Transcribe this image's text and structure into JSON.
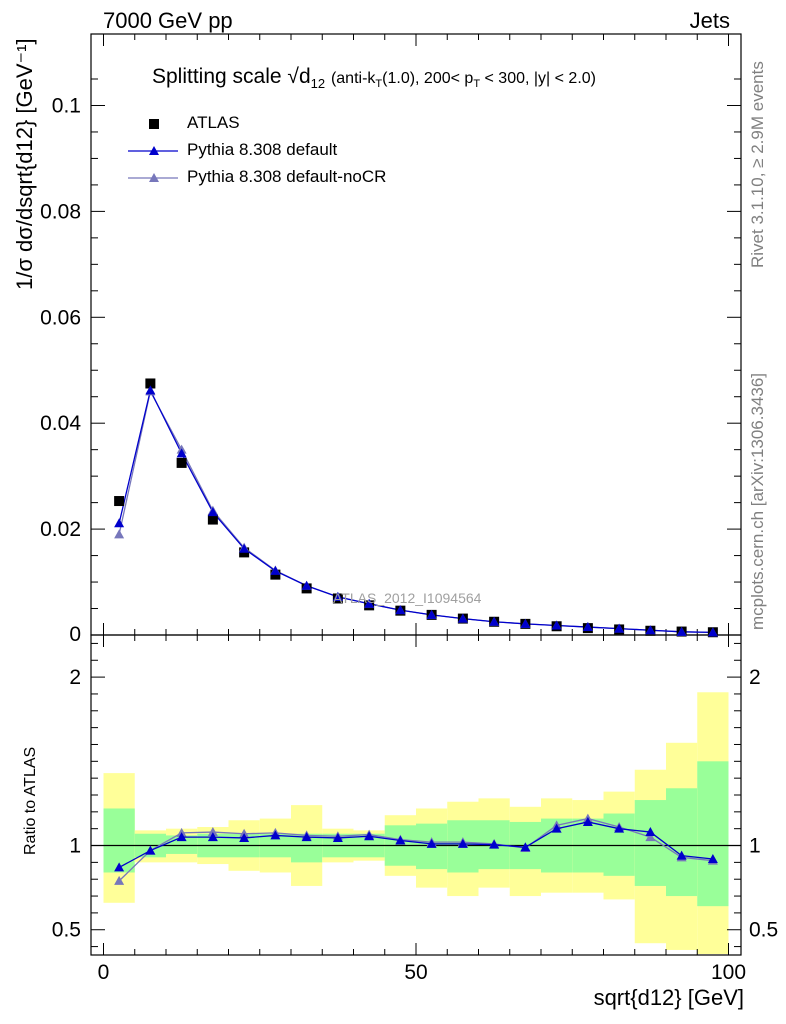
{
  "header": {
    "left": "7000 GeV pp",
    "right": "Jets"
  },
  "side": {
    "rivet": "Rivet 3.1.10, ≥ 2.9M events",
    "mcplots": "mcplots.cern.ch [arXiv:1306.3436]"
  },
  "analysis_tag": "ATLAS_2012_I1094564",
  "chart_data": [
    {
      "type": "scatter",
      "title": "Splitting scale √d12 (anti-kT(1.0), 200< pT < 300, |y| < 2.0)",
      "title_main": "Splitting scale",
      "title_sqrt": "√d",
      "title_sub": "12",
      "title_rest": "(anti-k",
      "title_rest2": "(1.0), 200< p",
      "title_rest3": "< 300, |y| < 2.0)",
      "title_sub_t": "T",
      "ylabel": "1/σ dσ/dsqrt{d12} [GeV⁻¹]",
      "xlabel": "sqrt{d12} [GeV]",
      "xlim": [
        -2,
        102
      ],
      "ylim": [
        0,
        0.1135
      ],
      "yticks": [
        0.02,
        0.04,
        0.06,
        0.08,
        0.1
      ],
      "ytick_labels": [
        "0.02",
        "0.04",
        "0.06",
        "0.08",
        "0.1"
      ],
      "y_zero_label": "0",
      "legend_position": "top-left",
      "x": [
        2.5,
        7.5,
        12.5,
        17.5,
        22.5,
        27.5,
        32.5,
        37.5,
        42.5,
        47.5,
        52.5,
        57.5,
        62.5,
        67.5,
        72.5,
        77.5,
        82.5,
        87.5,
        92.5,
        97.5
      ],
      "series": [
        {
          "name": "ATLAS",
          "color": "#000000",
          "marker": "square",
          "values": [
            0.0253,
            0.0475,
            0.0325,
            0.0218,
            0.0156,
            0.0114,
            0.0088,
            0.0069,
            0.0056,
            0.0046,
            0.0038,
            0.0031,
            0.0025,
            0.0021,
            0.00165,
            0.0013,
            0.00105,
            0.0008,
            0.00065,
            0.00052
          ]
        },
        {
          "name": "Pythia 8.308 default",
          "color": "#0000cc",
          "marker": "triangle",
          "values": [
            0.0211,
            0.0462,
            0.0343,
            0.0232,
            0.0163,
            0.0121,
            0.0093,
            0.0072,
            0.0059,
            0.0047,
            0.0038,
            0.0031,
            0.0025,
            0.0021,
            0.0018,
            0.0015,
            0.0012,
            0.0009,
            0.0006,
            0.0005
          ]
        },
        {
          "name": "Pythia 8.308 default-noCR",
          "color": "#7777bb",
          "marker": "triangle",
          "values": [
            0.019,
            0.046,
            0.035,
            0.0235,
            0.0165,
            0.0122,
            0.0093,
            0.0072,
            0.0059,
            0.0047,
            0.0038,
            0.0031,
            0.0025,
            0.0021,
            0.0018,
            0.0015,
            0.0012,
            0.0009,
            0.0006,
            0.0005
          ]
        }
      ]
    },
    {
      "type": "scatter",
      "ylabel": "Ratio to ATLAS",
      "xlim": [
        -2,
        102
      ],
      "ylim": [
        0.35,
        2.25
      ],
      "yticks": [
        0.5,
        1,
        2
      ],
      "ytick_labels": [
        "0.5",
        "1",
        "2"
      ],
      "xticks": [
        0,
        50,
        100
      ],
      "xtick_labels": [
        "0",
        "50",
        "100"
      ],
      "bin_edges": [
        0,
        5,
        10,
        15,
        20,
        25,
        30,
        35,
        40,
        45,
        50,
        55,
        60,
        65,
        70,
        75,
        80,
        85,
        90,
        95,
        100
      ],
      "band_1sigma_lo": [
        0.84,
        0.93,
        0.95,
        0.93,
        0.93,
        0.93,
        0.9,
        0.93,
        0.93,
        0.88,
        0.86,
        0.84,
        0.86,
        0.86,
        0.84,
        0.84,
        0.82,
        0.76,
        0.7,
        0.64
      ],
      "band_1sigma_hi": [
        1.22,
        1.07,
        1.06,
        1.07,
        1.07,
        1.07,
        1.07,
        1.07,
        1.07,
        1.12,
        1.13,
        1.15,
        1.15,
        1.14,
        1.16,
        1.16,
        1.19,
        1.27,
        1.34,
        1.5
      ],
      "band_2sigma_lo": [
        0.66,
        0.9,
        0.9,
        0.89,
        0.85,
        0.84,
        0.76,
        0.9,
        0.91,
        0.82,
        0.75,
        0.7,
        0.75,
        0.7,
        0.72,
        0.72,
        0.68,
        0.42,
        0.38,
        0.35
      ],
      "band_2sigma_hi": [
        1.43,
        1.09,
        1.1,
        1.11,
        1.15,
        1.16,
        1.24,
        1.1,
        1.09,
        1.18,
        1.22,
        1.26,
        1.28,
        1.23,
        1.28,
        1.27,
        1.32,
        1.45,
        1.61,
        1.91
      ],
      "series": [
        {
          "name": "Pythia 8.308 default",
          "color": "#0000cc",
          "values": [
            0.87,
            0.97,
            1.05,
            1.05,
            1.045,
            1.06,
            1.05,
            1.045,
            1.055,
            1.03,
            1.01,
            1.01,
            1.005,
            0.99,
            1.1,
            1.14,
            1.1,
            1.08,
            0.94,
            0.92
          ]
        },
        {
          "name": "Pythia 8.308 default-noCR",
          "color": "#7777bb",
          "values": [
            0.79,
            0.97,
            1.075,
            1.08,
            1.07,
            1.075,
            1.06,
            1.055,
            1.065,
            1.035,
            1.02,
            1.02,
            1.01,
            0.985,
            1.12,
            1.16,
            1.11,
            1.05,
            0.93,
            0.91
          ]
        }
      ]
    }
  ]
}
